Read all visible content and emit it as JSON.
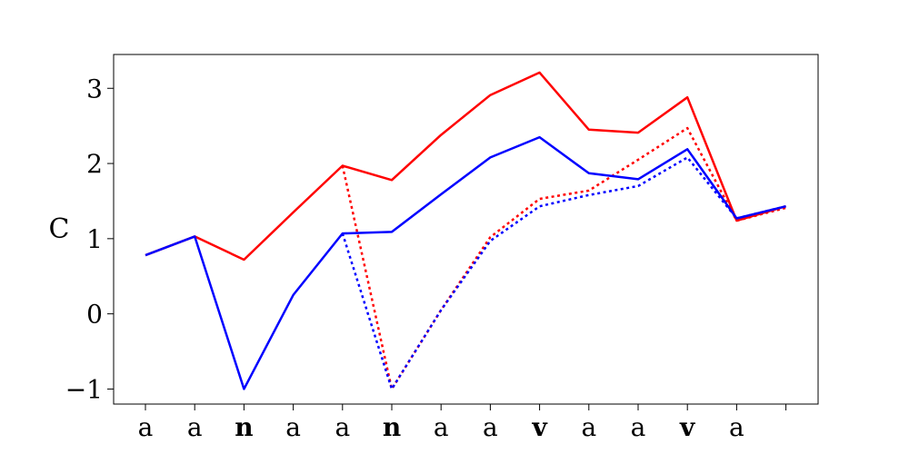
{
  "chart_data": {
    "type": "line",
    "title": "",
    "xlabel": "",
    "ylabel": "C",
    "categories": [
      "a",
      "a",
      "n",
      "a",
      "a",
      "n",
      "a",
      "a",
      "v",
      "a",
      "a",
      "v",
      "a",
      ""
    ],
    "bold_categories": [
      2,
      5,
      8,
      11
    ],
    "ylim": [
      -1.2,
      3.45
    ],
    "yticks": [
      -1,
      0,
      1,
      2,
      3
    ],
    "ytick_labels": [
      "−1",
      "0",
      "1",
      "2",
      "3"
    ],
    "grid": false,
    "legend": "none",
    "series": [
      {
        "color": "#ff0000",
        "style": "solid",
        "values": [
          0.78,
          1.03,
          0.72,
          1.35,
          1.97,
          1.78,
          2.38,
          2.91,
          3.21,
          2.45,
          2.41,
          2.88,
          1.24,
          1.43
        ]
      },
      {
        "color": "#0000ff",
        "style": "solid",
        "values": [
          0.78,
          1.03,
          -1.0,
          0.25,
          1.07,
          1.09,
          1.59,
          2.08,
          2.35,
          1.87,
          1.79,
          2.19,
          1.27,
          1.43
        ]
      },
      {
        "color": "#ff0000",
        "style": "dotted",
        "values": [
          null,
          null,
          null,
          null,
          1.97,
          -1.0,
          0.05,
          1.02,
          1.53,
          1.64,
          2.05,
          2.47,
          1.24,
          1.41
        ]
      },
      {
        "color": "#0000ff",
        "style": "dotted",
        "values": [
          null,
          null,
          null,
          null,
          1.07,
          -1.0,
          0.05,
          0.97,
          1.43,
          1.58,
          1.7,
          2.08,
          1.27,
          1.43
        ]
      }
    ]
  }
}
